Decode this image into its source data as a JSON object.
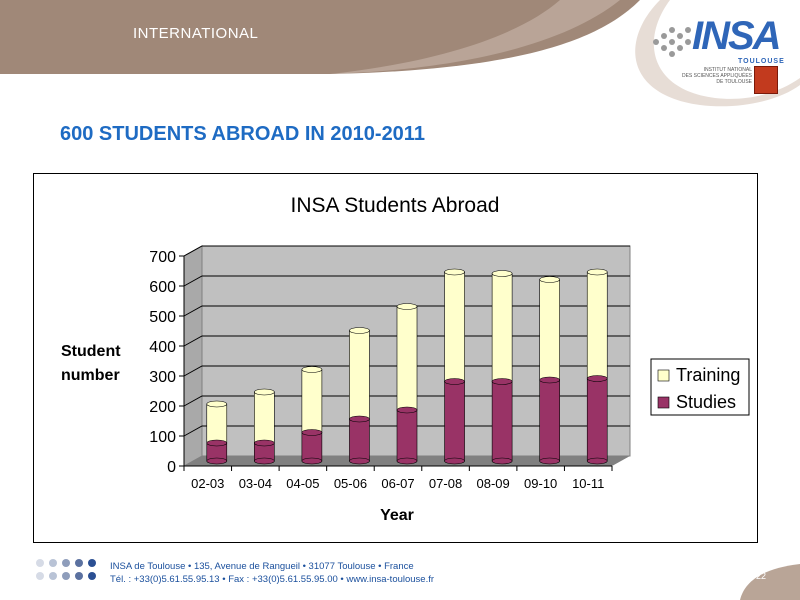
{
  "header": {
    "section_label": "INTERNATIONAL",
    "logo_name": "INSA",
    "logo_sub": "TOULOUSE",
    "logo_caption_line1": "INSTITUT NATIONAL",
    "logo_caption_line2": "DES SCIENCES APPLIQUÉES",
    "logo_caption_line3": "DE TOULOUSE"
  },
  "slide_title": "600 STUDENTS ABROAD IN 2010-2011",
  "chart_data": {
    "type": "bar",
    "stacked": true,
    "title": "INSA Students Abroad",
    "xlabel": "Year",
    "ylabel_line1": "Student",
    "ylabel_line2": "number",
    "ylim": [
      0,
      700
    ],
    "yticks": [
      0,
      100,
      200,
      300,
      400,
      500,
      600,
      700
    ],
    "grid": true,
    "legend": "right",
    "categories": [
      "02-03",
      "03-04",
      "04-05",
      "05-06",
      "06-07",
      "07-08",
      "08-09",
      "09-10",
      "10-11"
    ],
    "series": [
      {
        "name": "Studies",
        "color": "#993366",
        "values": [
          60,
          60,
          95,
          140,
          170,
          265,
          265,
          270,
          275
        ]
      },
      {
        "name": "Training",
        "color": "#ffffcc",
        "values": [
          130,
          170,
          210,
          295,
          345,
          365,
          360,
          335,
          355
        ]
      }
    ]
  },
  "footer": {
    "line1": "INSA de Toulouse • 135, Avenue de Rangueil • 31077 Toulouse • France",
    "line2": "Tél. : +33(0)5.61.55.95.13 • Fax : +33(0)5.61.55.95.00 • www.insa-toulouse.fr",
    "page_number": "22"
  },
  "colors": {
    "title_blue": "#1e6bc3",
    "header_brown": "#a08878",
    "plot_gray": "#c0c0c0"
  }
}
